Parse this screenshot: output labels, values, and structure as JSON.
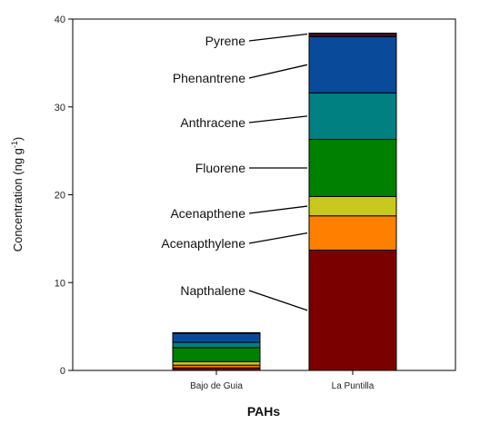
{
  "chart_data": {
    "type": "bar",
    "stacked": true,
    "title": "",
    "xlabel": "PAHs",
    "ylabel": "Concentration (ng g",
    "ylabel_superscript": "-1",
    "ylabel_suffix": ")",
    "ylim": [
      0,
      40
    ],
    "yticks": [
      0,
      10,
      20,
      30,
      40
    ],
    "grid": false,
    "categories": [
      "Bajo de Guia",
      "La Puntilla"
    ],
    "series": [
      {
        "name": "Napthalene",
        "color": "#7a0000",
        "values": [
          0.3,
          13.7
        ]
      },
      {
        "name": "Acenapthylene",
        "color": "#ff8000",
        "values": [
          0.3,
          3.9
        ]
      },
      {
        "name": "Acenapthene",
        "color": "#c8c81e",
        "values": [
          0.4,
          2.2
        ]
      },
      {
        "name": "Fluorene",
        "color": "#008000",
        "values": [
          1.6,
          6.5
        ]
      },
      {
        "name": "Anthracene",
        "color": "#008080",
        "values": [
          0.6,
          5.3
        ]
      },
      {
        "name": "Phenantrene",
        "color": "#0a4a9a",
        "values": [
          1.0,
          6.4
        ]
      },
      {
        "name": "Pyrene",
        "color": "#3a0f2a",
        "values": [
          0.1,
          0.4
        ]
      }
    ]
  }
}
